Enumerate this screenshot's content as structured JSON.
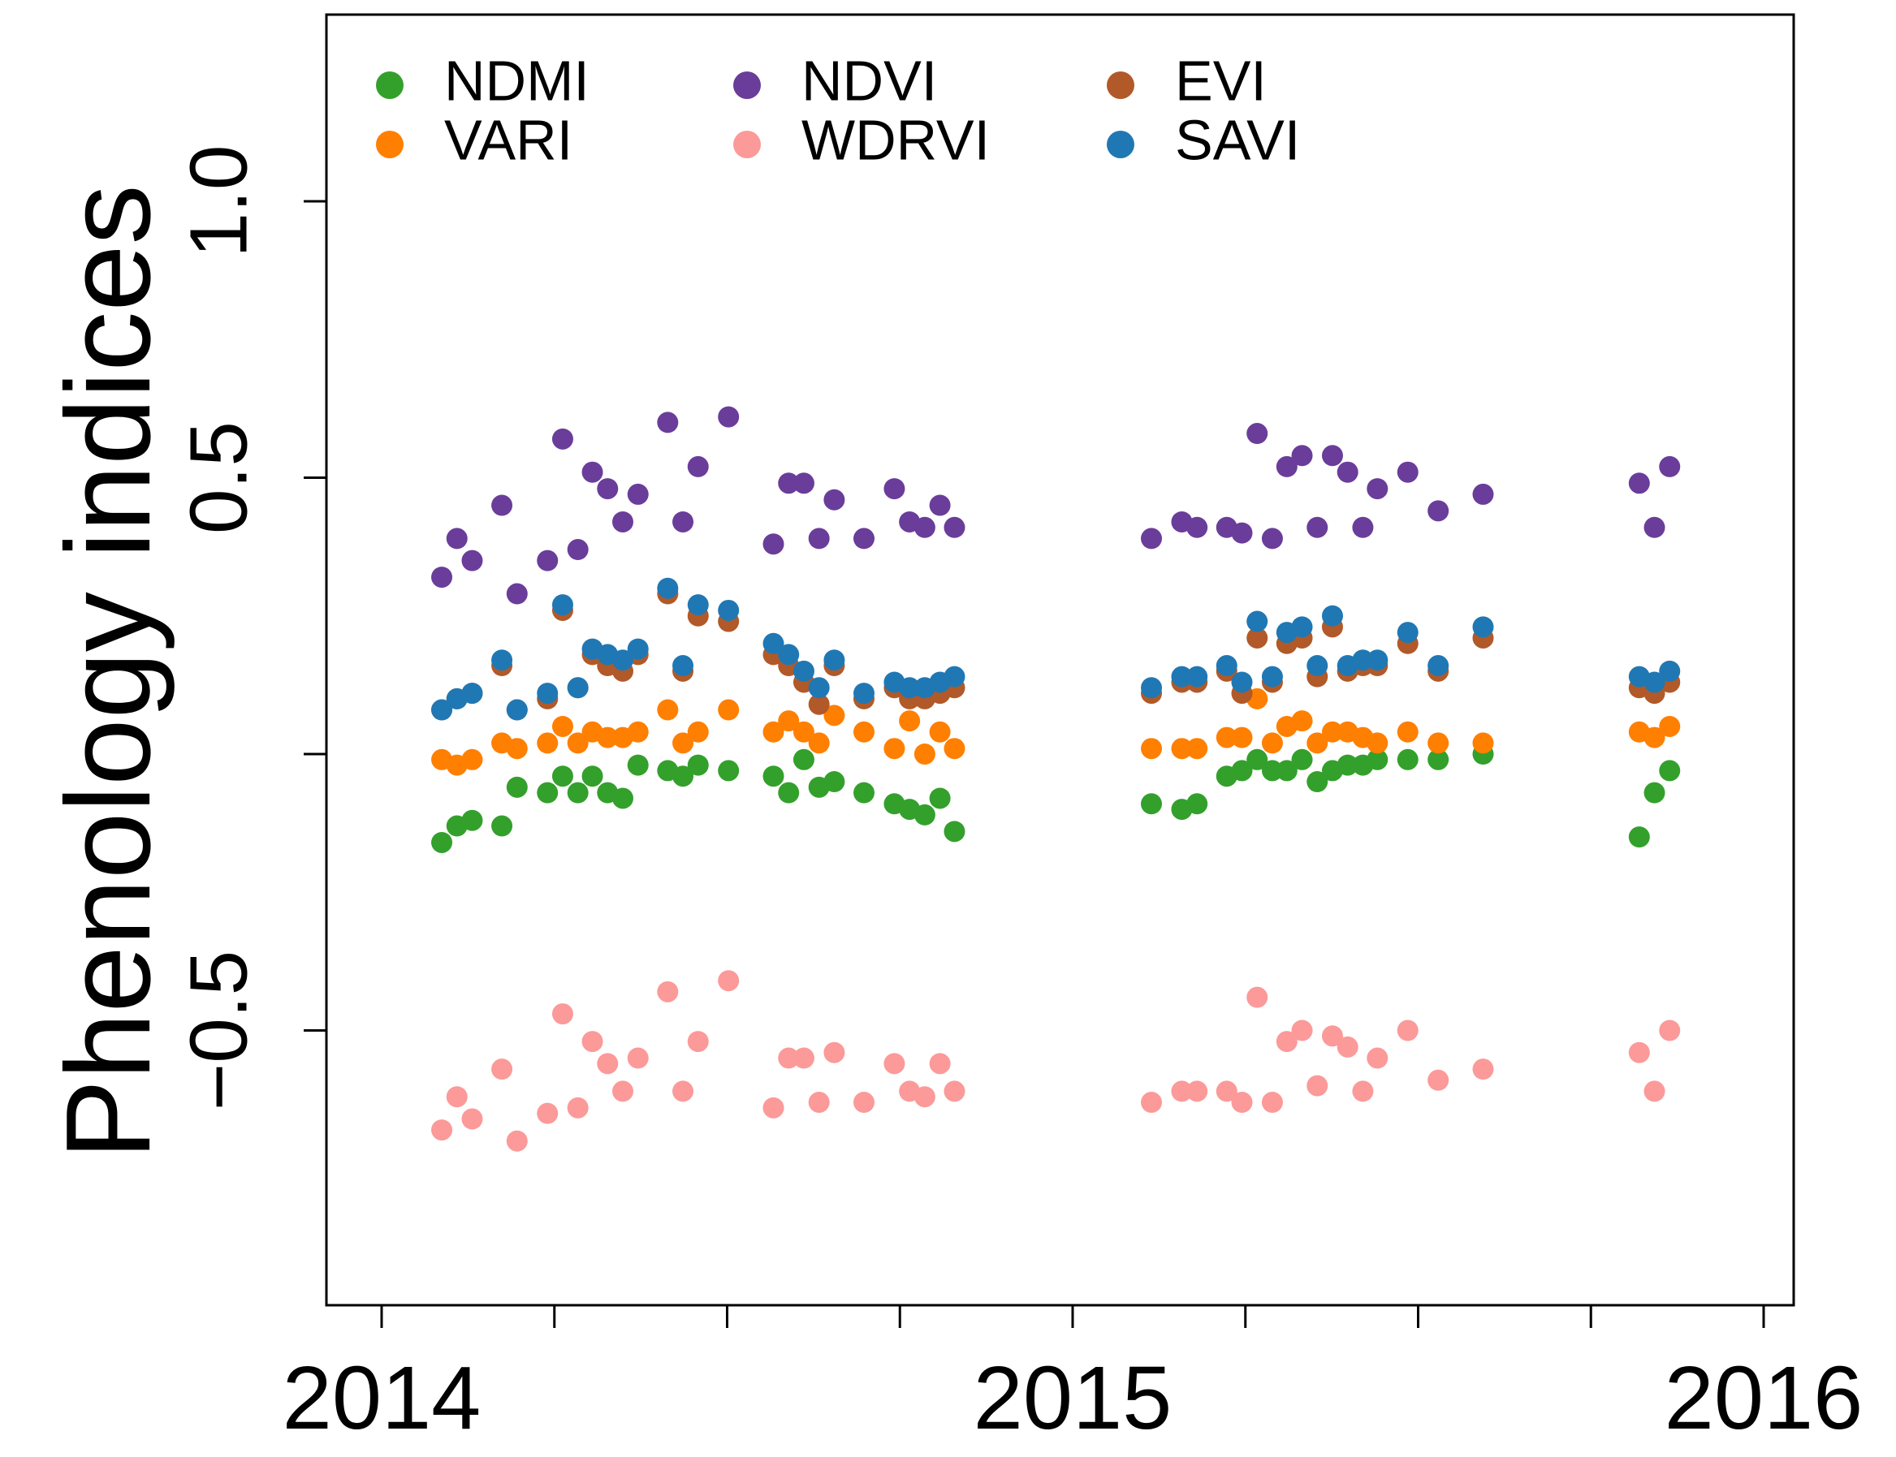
{
  "chart_data": {
    "type": "scatter",
    "title": "",
    "xlabel": "",
    "ylabel": "Phenology indices",
    "xlim": [
      2014.0,
      2016.0
    ],
    "ylim": [
      -1.0,
      1.3
    ],
    "grid": false,
    "legend_position": "top-left",
    "x_ticks": [
      2014.0,
      2014.25,
      2014.5,
      2014.75,
      2015.0,
      2015.25,
      2015.5,
      2015.75,
      2016.0
    ],
    "x_tick_labels": [
      {
        "value": 2014.0,
        "label": "2014"
      },
      {
        "value": 2015.0,
        "label": "2015"
      },
      {
        "value": 2016.0,
        "label": "2016"
      }
    ],
    "y_ticks": [
      {
        "value": -0.5,
        "label": "−0.5"
      },
      {
        "value": 0.0,
        "label": ""
      },
      {
        "value": 0.5,
        "label": "0.5"
      },
      {
        "value": 1.0,
        "label": "1.0"
      }
    ],
    "series": [
      {
        "name": "NDMI",
        "color": "#33a02c",
        "points": [
          [
            2014.087,
            -0.16
          ],
          [
            2014.109,
            -0.13
          ],
          [
            2014.131,
            -0.12
          ],
          [
            2014.174,
            -0.13
          ],
          [
            2014.196,
            -0.06
          ],
          [
            2014.24,
            -0.07
          ],
          [
            2014.262,
            -0.04
          ],
          [
            2014.284,
            -0.07
          ],
          [
            2014.305,
            -0.04
          ],
          [
            2014.327,
            -0.07
          ],
          [
            2014.349,
            -0.08
          ],
          [
            2014.371,
            -0.02
          ],
          [
            2014.414,
            -0.03
          ],
          [
            2014.436,
            -0.04
          ],
          [
            2014.458,
            -0.02
          ],
          [
            2014.502,
            -0.03
          ],
          [
            2014.567,
            -0.04
          ],
          [
            2014.589,
            -0.07
          ],
          [
            2014.611,
            -0.01
          ],
          [
            2014.633,
            -0.06
          ],
          [
            2014.655,
            -0.05
          ],
          [
            2014.698,
            -0.07
          ],
          [
            2014.742,
            -0.09
          ],
          [
            2014.764,
            -0.1
          ],
          [
            2014.786,
            -0.11
          ],
          [
            2014.808,
            -0.08
          ],
          [
            2014.829,
            -0.14
          ],
          [
            2015.114,
            -0.09
          ],
          [
            2015.158,
            -0.1
          ],
          [
            2015.18,
            -0.09
          ],
          [
            2015.223,
            -0.04
          ],
          [
            2015.245,
            -0.03
          ],
          [
            2015.267,
            -0.01
          ],
          [
            2015.289,
            -0.03
          ],
          [
            2015.31,
            -0.03
          ],
          [
            2015.332,
            -0.01
          ],
          [
            2015.354,
            -0.05
          ],
          [
            2015.376,
            -0.03
          ],
          [
            2015.398,
            -0.02
          ],
          [
            2015.42,
            -0.02
          ],
          [
            2015.441,
            -0.01
          ],
          [
            2015.485,
            -0.01
          ],
          [
            2015.529,
            -0.01
          ],
          [
            2015.594,
            0.0
          ],
          [
            2015.82,
            -0.15
          ],
          [
            2015.842,
            -0.07
          ],
          [
            2015.864,
            -0.03
          ]
        ]
      },
      {
        "name": "VARI",
        "color": "#ff7f00",
        "points": [
          [
            2014.087,
            -0.01
          ],
          [
            2014.109,
            -0.02
          ],
          [
            2014.131,
            -0.01
          ],
          [
            2014.174,
            0.02
          ],
          [
            2014.196,
            0.01
          ],
          [
            2014.24,
            0.02
          ],
          [
            2014.262,
            0.05
          ],
          [
            2014.284,
            0.02
          ],
          [
            2014.305,
            0.04
          ],
          [
            2014.327,
            0.03
          ],
          [
            2014.349,
            0.03
          ],
          [
            2014.371,
            0.04
          ],
          [
            2014.414,
            0.08
          ],
          [
            2014.436,
            0.02
          ],
          [
            2014.458,
            0.04
          ],
          [
            2014.502,
            0.08
          ],
          [
            2014.567,
            0.04
          ],
          [
            2014.589,
            0.06
          ],
          [
            2014.611,
            0.04
          ],
          [
            2014.633,
            0.02
          ],
          [
            2014.655,
            0.07
          ],
          [
            2014.698,
            0.04
          ],
          [
            2014.742,
            0.01
          ],
          [
            2014.764,
            0.06
          ],
          [
            2014.786,
            0.0
          ],
          [
            2014.808,
            0.04
          ],
          [
            2014.829,
            0.01
          ],
          [
            2015.114,
            0.01
          ],
          [
            2015.158,
            0.01
          ],
          [
            2015.18,
            0.01
          ],
          [
            2015.223,
            0.03
          ],
          [
            2015.245,
            0.03
          ],
          [
            2015.267,
            0.1
          ],
          [
            2015.289,
            0.02
          ],
          [
            2015.31,
            0.05
          ],
          [
            2015.332,
            0.06
          ],
          [
            2015.354,
            0.02
          ],
          [
            2015.376,
            0.04
          ],
          [
            2015.398,
            0.04
          ],
          [
            2015.42,
            0.03
          ],
          [
            2015.441,
            0.02
          ],
          [
            2015.485,
            0.04
          ],
          [
            2015.529,
            0.02
          ],
          [
            2015.594,
            0.02
          ],
          [
            2015.82,
            0.04
          ],
          [
            2015.842,
            0.03
          ],
          [
            2015.864,
            0.05
          ]
        ]
      },
      {
        "name": "NDVI",
        "color": "#6a3d9a",
        "points": [
          [
            2014.087,
            0.32
          ],
          [
            2014.109,
            0.39
          ],
          [
            2014.131,
            0.35
          ],
          [
            2014.174,
            0.45
          ],
          [
            2014.196,
            0.29
          ],
          [
            2014.24,
            0.35
          ],
          [
            2014.262,
            0.57
          ],
          [
            2014.284,
            0.37
          ],
          [
            2014.305,
            0.51
          ],
          [
            2014.327,
            0.48
          ],
          [
            2014.349,
            0.42
          ],
          [
            2014.371,
            0.47
          ],
          [
            2014.414,
            0.6
          ],
          [
            2014.436,
            0.42
          ],
          [
            2014.458,
            0.52
          ],
          [
            2014.502,
            0.61
          ],
          [
            2014.567,
            0.38
          ],
          [
            2014.589,
            0.49
          ],
          [
            2014.611,
            0.49
          ],
          [
            2014.633,
            0.39
          ],
          [
            2014.655,
            0.46
          ],
          [
            2014.698,
            0.39
          ],
          [
            2014.742,
            0.48
          ],
          [
            2014.764,
            0.42
          ],
          [
            2014.786,
            0.41
          ],
          [
            2014.808,
            0.45
          ],
          [
            2014.829,
            0.41
          ],
          [
            2015.114,
            0.39
          ],
          [
            2015.158,
            0.42
          ],
          [
            2015.18,
            0.41
          ],
          [
            2015.223,
            0.41
          ],
          [
            2015.245,
            0.4
          ],
          [
            2015.267,
            0.58
          ],
          [
            2015.289,
            0.39
          ],
          [
            2015.31,
            0.52
          ],
          [
            2015.332,
            0.54
          ],
          [
            2015.354,
            0.41
          ],
          [
            2015.376,
            0.54
          ],
          [
            2015.398,
            0.51
          ],
          [
            2015.42,
            0.41
          ],
          [
            2015.441,
            0.48
          ],
          [
            2015.485,
            0.51
          ],
          [
            2015.529,
            0.44
          ],
          [
            2015.594,
            0.47
          ],
          [
            2015.82,
            0.49
          ],
          [
            2015.842,
            0.41
          ],
          [
            2015.864,
            0.52
          ]
        ]
      },
      {
        "name": "WDRVI",
        "color": "#fb9a99",
        "points": [
          [
            2014.087,
            -0.68
          ],
          [
            2014.109,
            -0.62
          ],
          [
            2014.131,
            -0.66
          ],
          [
            2014.174,
            -0.57
          ],
          [
            2014.196,
            -0.7
          ],
          [
            2014.24,
            -0.65
          ],
          [
            2014.262,
            -0.47
          ],
          [
            2014.284,
            -0.64
          ],
          [
            2014.305,
            -0.52
          ],
          [
            2014.327,
            -0.56
          ],
          [
            2014.349,
            -0.61
          ],
          [
            2014.371,
            -0.55
          ],
          [
            2014.414,
            -0.43
          ],
          [
            2014.436,
            -0.61
          ],
          [
            2014.458,
            -0.52
          ],
          [
            2014.502,
            -0.41
          ],
          [
            2014.567,
            -0.64
          ],
          [
            2014.589,
            -0.55
          ],
          [
            2014.611,
            -0.55
          ],
          [
            2014.633,
            -0.63
          ],
          [
            2014.655,
            -0.54
          ],
          [
            2014.698,
            -0.63
          ],
          [
            2014.742,
            -0.56
          ],
          [
            2014.764,
            -0.61
          ],
          [
            2014.786,
            -0.62
          ],
          [
            2014.808,
            -0.56
          ],
          [
            2014.829,
            -0.61
          ],
          [
            2015.114,
            -0.63
          ],
          [
            2015.158,
            -0.61
          ],
          [
            2015.18,
            -0.61
          ],
          [
            2015.223,
            -0.61
          ],
          [
            2015.245,
            -0.63
          ],
          [
            2015.267,
            -0.44
          ],
          [
            2015.289,
            -0.63
          ],
          [
            2015.31,
            -0.52
          ],
          [
            2015.332,
            -0.5
          ],
          [
            2015.354,
            -0.6
          ],
          [
            2015.376,
            -0.51
          ],
          [
            2015.398,
            -0.53
          ],
          [
            2015.42,
            -0.61
          ],
          [
            2015.441,
            -0.55
          ],
          [
            2015.485,
            -0.5
          ],
          [
            2015.529,
            -0.59
          ],
          [
            2015.594,
            -0.57
          ],
          [
            2015.82,
            -0.54
          ],
          [
            2015.842,
            -0.61
          ],
          [
            2015.864,
            -0.5
          ]
        ]
      },
      {
        "name": "EVI",
        "color": "#b15928",
        "points": [
          [
            2014.087,
            0.08
          ],
          [
            2014.109,
            0.1
          ],
          [
            2014.131,
            0.11
          ],
          [
            2014.174,
            0.16
          ],
          [
            2014.196,
            0.08
          ],
          [
            2014.24,
            0.1
          ],
          [
            2014.262,
            0.26
          ],
          [
            2014.284,
            0.12
          ],
          [
            2014.305,
            0.18
          ],
          [
            2014.327,
            0.16
          ],
          [
            2014.349,
            0.15
          ],
          [
            2014.371,
            0.18
          ],
          [
            2014.414,
            0.29
          ],
          [
            2014.436,
            0.15
          ],
          [
            2014.458,
            0.25
          ],
          [
            2014.502,
            0.24
          ],
          [
            2014.567,
            0.18
          ],
          [
            2014.589,
            0.16
          ],
          [
            2014.611,
            0.13
          ],
          [
            2014.633,
            0.09
          ],
          [
            2014.655,
            0.16
          ],
          [
            2014.698,
            0.1
          ],
          [
            2014.742,
            0.12
          ],
          [
            2014.764,
            0.1
          ],
          [
            2014.786,
            0.1
          ],
          [
            2014.808,
            0.11
          ],
          [
            2014.829,
            0.12
          ],
          [
            2015.114,
            0.11
          ],
          [
            2015.158,
            0.13
          ],
          [
            2015.18,
            0.13
          ],
          [
            2015.223,
            0.15
          ],
          [
            2015.245,
            0.11
          ],
          [
            2015.267,
            0.21
          ],
          [
            2015.289,
            0.13
          ],
          [
            2015.31,
            0.2
          ],
          [
            2015.332,
            0.21
          ],
          [
            2015.354,
            0.14
          ],
          [
            2015.376,
            0.23
          ],
          [
            2015.398,
            0.15
          ],
          [
            2015.42,
            0.16
          ],
          [
            2015.441,
            0.16
          ],
          [
            2015.485,
            0.2
          ],
          [
            2015.529,
            0.15
          ],
          [
            2015.594,
            0.21
          ],
          [
            2015.82,
            0.12
          ],
          [
            2015.842,
            0.11
          ],
          [
            2015.864,
            0.13
          ]
        ]
      },
      {
        "name": "SAVI",
        "color": "#1f78b4",
        "points": [
          [
            2014.087,
            0.08
          ],
          [
            2014.109,
            0.1
          ],
          [
            2014.131,
            0.11
          ],
          [
            2014.174,
            0.17
          ],
          [
            2014.196,
            0.08
          ],
          [
            2014.24,
            0.11
          ],
          [
            2014.262,
            0.27
          ],
          [
            2014.284,
            0.12
          ],
          [
            2014.305,
            0.19
          ],
          [
            2014.327,
            0.18
          ],
          [
            2014.349,
            0.17
          ],
          [
            2014.371,
            0.19
          ],
          [
            2014.414,
            0.3
          ],
          [
            2014.436,
            0.16
          ],
          [
            2014.458,
            0.27
          ],
          [
            2014.502,
            0.26
          ],
          [
            2014.567,
            0.2
          ],
          [
            2014.589,
            0.18
          ],
          [
            2014.611,
            0.15
          ],
          [
            2014.633,
            0.12
          ],
          [
            2014.655,
            0.17
          ],
          [
            2014.698,
            0.11
          ],
          [
            2014.742,
            0.13
          ],
          [
            2014.764,
            0.12
          ],
          [
            2014.786,
            0.12
          ],
          [
            2014.808,
            0.13
          ],
          [
            2014.829,
            0.14
          ],
          [
            2015.114,
            0.12
          ],
          [
            2015.158,
            0.14
          ],
          [
            2015.18,
            0.14
          ],
          [
            2015.223,
            0.16
          ],
          [
            2015.245,
            0.13
          ],
          [
            2015.267,
            0.24
          ],
          [
            2015.289,
            0.14
          ],
          [
            2015.31,
            0.22
          ],
          [
            2015.332,
            0.23
          ],
          [
            2015.354,
            0.16
          ],
          [
            2015.376,
            0.25
          ],
          [
            2015.398,
            0.16
          ],
          [
            2015.42,
            0.17
          ],
          [
            2015.441,
            0.17
          ],
          [
            2015.485,
            0.22
          ],
          [
            2015.529,
            0.16
          ],
          [
            2015.594,
            0.23
          ],
          [
            2015.82,
            0.14
          ],
          [
            2015.842,
            0.13
          ],
          [
            2015.864,
            0.15
          ]
        ]
      }
    ],
    "legend_order": [
      "NDMI",
      "NDVI",
      "EVI",
      "VARI",
      "WDRVI",
      "SAVI"
    ]
  }
}
